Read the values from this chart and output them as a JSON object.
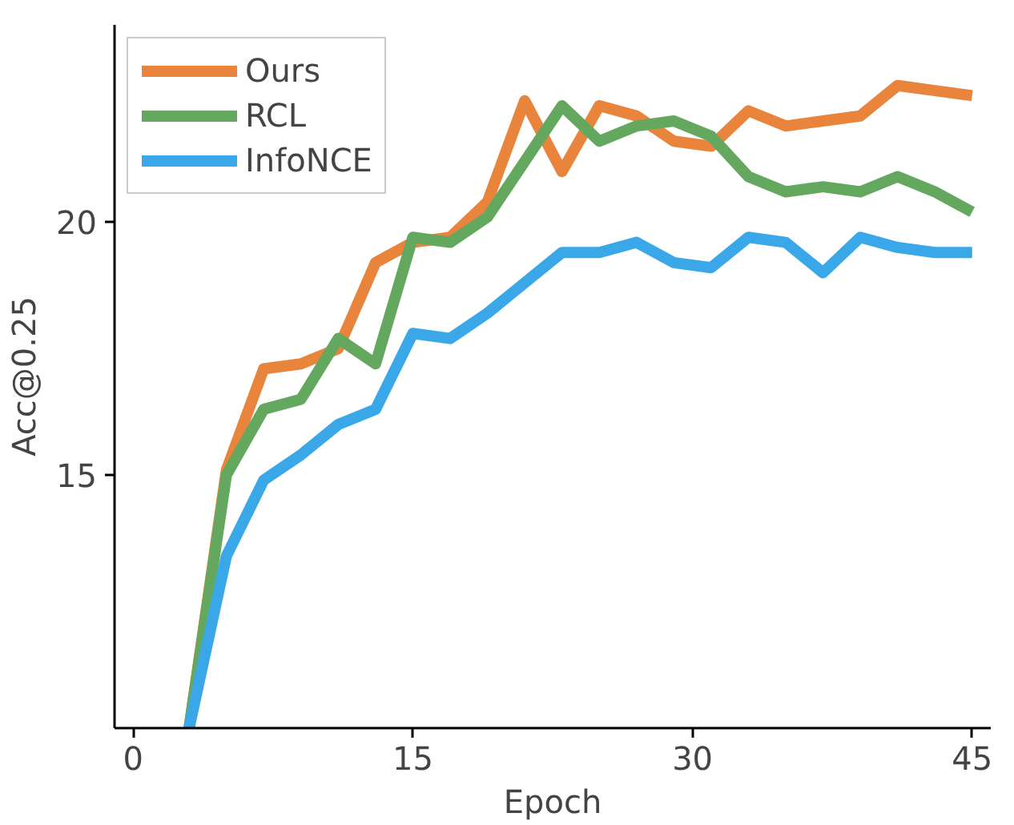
{
  "chart_data": {
    "type": "line",
    "xlabel": "Epoch",
    "ylabel": "Acc@0.25",
    "x": [
      3,
      5,
      7,
      9,
      11,
      13,
      15,
      17,
      19,
      21,
      23,
      25,
      27,
      29,
      31,
      33,
      35,
      37,
      39,
      41,
      43,
      45
    ],
    "series": [
      {
        "name": "Ours",
        "color": "#e8843c",
        "values": [
          10.0,
          15.1,
          17.1,
          17.2,
          17.5,
          19.2,
          19.6,
          19.7,
          20.4,
          22.4,
          21.0,
          22.3,
          22.1,
          21.6,
          21.5,
          22.2,
          21.9,
          22.0,
          22.1,
          22.7,
          22.6,
          22.5
        ]
      },
      {
        "name": "RCL",
        "color": "#64a860",
        "values": [
          10.0,
          15.0,
          16.3,
          16.5,
          17.7,
          17.2,
          19.7,
          19.6,
          20.1,
          21.2,
          22.3,
          21.6,
          21.9,
          22.0,
          21.7,
          20.9,
          20.6,
          20.7,
          20.6,
          20.9,
          20.6,
          20.2
        ]
      },
      {
        "name": "InfoNCE",
        "color": "#3aa8e8",
        "values": [
          10.0,
          13.4,
          14.9,
          15.4,
          16.0,
          16.3,
          17.8,
          17.7,
          18.2,
          18.8,
          19.4,
          19.4,
          19.6,
          19.2,
          19.1,
          19.7,
          19.6,
          19.0,
          19.7,
          19.5,
          19.4,
          19.4
        ]
      }
    ],
    "xlim": [
      -1,
      46
    ],
    "ylim": [
      10,
      23.9
    ],
    "xticks": [
      0,
      15,
      30,
      45
    ],
    "yticks": [
      15,
      20
    ],
    "grid": false,
    "legend": "top left",
    "marker": "none",
    "line_style": "solid"
  }
}
